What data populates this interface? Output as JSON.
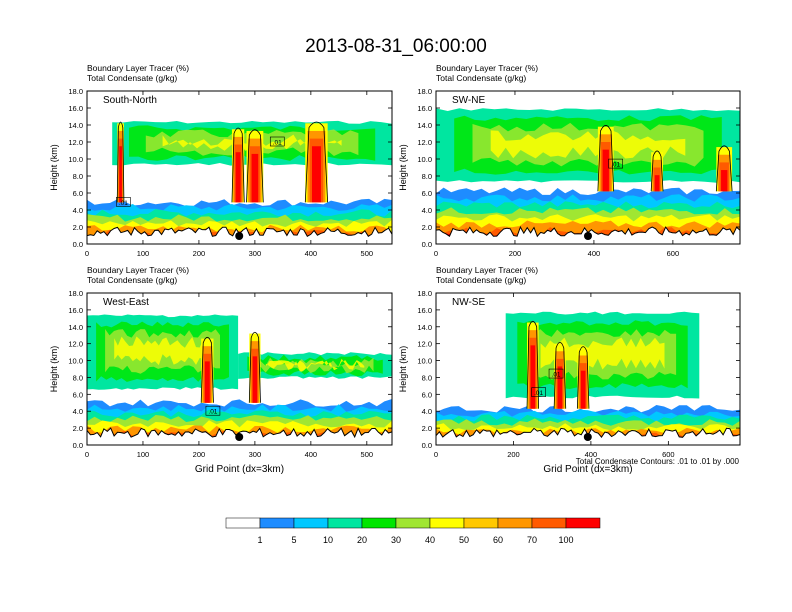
{
  "figure": {
    "title": "2013-08-31_06:00:00",
    "contour_note": "Total Condensate Contours: .01 to .01 by .000",
    "x_axis_title": "Grid Point (dx=3km)"
  },
  "colorbar": {
    "levels": [
      "1",
      "5",
      "10",
      "20",
      "30",
      "40",
      "50",
      "60",
      "70",
      "100"
    ],
    "colors": [
      "#ffffff",
      "#1e8cff",
      "#00c8ff",
      "#00e6a0",
      "#00e600",
      "#a0e632",
      "#ffff00",
      "#ffc800",
      "#ff9600",
      "#ff5a00",
      "#ff0000"
    ]
  },
  "chart_data": [
    {
      "type": "heatmap",
      "label": "South-North",
      "title_line1": "Boundary Layer Tracer   (%)",
      "title_line2": "Total Condensate   (g/kg)",
      "ylabel": "Height (km)",
      "xlabel": "",
      "xlim": [
        0,
        545
      ],
      "ylim": [
        0,
        18
      ],
      "xticks": [
        "0",
        "100",
        "200",
        "300",
        "400",
        "500"
      ],
      "yticks": [
        "0.0",
        "2.0",
        "4.0",
        "6.0",
        "8.0",
        "10.0",
        "12.0",
        "14.0",
        "16.0",
        "18.0"
      ],
      "contour_labels": [
        {
          "text": ".01",
          "x": 65,
          "y": 4.9
        },
        {
          "text": ".01",
          "x": 340,
          "y": 12.0
        }
      ],
      "site_marker_x": 272,
      "pbl_top_km": 4.9,
      "anvils": [
        {
          "x0": 45,
          "x1": 545,
          "y0": 9.2,
          "y1": 14.5
        }
      ],
      "towers": [
        {
          "x": 60,
          "w": 12,
          "top": 14.2
        },
        {
          "x": 270,
          "w": 22,
          "top": 13.5
        },
        {
          "x": 300,
          "w": 30,
          "top": 13.3
        },
        {
          "x": 410,
          "w": 40,
          "top": 14.2
        }
      ]
    },
    {
      "type": "heatmap",
      "label": "SW-NE",
      "title_line1": "Boundary Layer Tracer   (%)",
      "title_line2": "Total Condensate   (g/kg)",
      "ylabel": "Height (km)",
      "xlabel": "",
      "xlim": [
        0,
        770
      ],
      "ylim": [
        0,
        18
      ],
      "xticks": [
        "0",
        "200",
        "400",
        "600"
      ],
      "yticks": [
        "0.0",
        "2.0",
        "4.0",
        "6.0",
        "8.0",
        "10.0",
        "12.0",
        "14.0",
        "16.0",
        "18.0"
      ],
      "contour_labels": [
        {
          "text": ".01",
          "x": 455,
          "y": 9.4
        }
      ],
      "site_marker_x": 385,
      "pbl_top_km": 6.2,
      "anvils": [
        {
          "x0": 0,
          "x1": 770,
          "y0": 7.2,
          "y1": 16.0
        }
      ],
      "towers": [
        {
          "x": 430,
          "w": 40,
          "top": 13.8
        },
        {
          "x": 560,
          "w": 30,
          "top": 10.8
        },
        {
          "x": 730,
          "w": 40,
          "top": 11.4
        }
      ]
    },
    {
      "type": "heatmap",
      "label": "West-East",
      "title_line1": "Boundary Layer Tracer   (%)",
      "title_line2": "Total Condensate   (g/kg)",
      "ylabel": "Height (km)",
      "xlabel": "Grid Point (dx=3km)",
      "xlim": [
        0,
        545
      ],
      "ylim": [
        0,
        18
      ],
      "xticks": [
        "0",
        "100",
        "200",
        "300",
        "400",
        "500"
      ],
      "yticks": [
        "0.0",
        "2.0",
        "4.0",
        "6.0",
        "8.0",
        "10.0",
        "12.0",
        "14.0",
        "16.0",
        "18.0"
      ],
      "contour_labels": [
        {
          "text": ".01",
          "x": 225,
          "y": 4.0
        }
      ],
      "site_marker_x": 272,
      "pbl_top_km": 5.0,
      "anvils": [
        {
          "x0": 0,
          "x1": 270,
          "y0": 6.5,
          "y1": 15.5
        },
        {
          "x0": 270,
          "x1": 545,
          "y0": 7.8,
          "y1": 11.0
        }
      ],
      "towers": [
        {
          "x": 215,
          "w": 22,
          "top": 12.6
        },
        {
          "x": 300,
          "w": 20,
          "top": 13.2
        }
      ]
    },
    {
      "type": "heatmap",
      "label": "NW-SE",
      "title_line1": "Boundary Layer Tracer   (%)",
      "title_line2": "Total Condensate   (g/kg)",
      "ylabel": "Height (km)",
      "xlabel": "Grid Point (dx=3km)",
      "xlim": [
        0,
        785
      ],
      "ylim": [
        0,
        18
      ],
      "xticks": [
        "0",
        "200",
        "400",
        "600"
      ],
      "yticks": [
        "0.0",
        "2.0",
        "4.0",
        "6.0",
        "8.0",
        "10.0",
        "12.0",
        "14.0",
        "16.0",
        "18.0"
      ],
      "contour_labels": [
        {
          "text": ".01",
          "x": 265,
          "y": 6.2
        },
        {
          "text": ".01",
          "x": 310,
          "y": 8.4
        }
      ],
      "site_marker_x": 392,
      "pbl_top_km": 4.3,
      "anvils": [
        {
          "x0": 180,
          "x1": 680,
          "y0": 5.5,
          "y1": 15.8
        }
      ],
      "towers": [
        {
          "x": 250,
          "w": 30,
          "top": 14.5
        },
        {
          "x": 320,
          "w": 30,
          "top": 12.0
        },
        {
          "x": 380,
          "w": 30,
          "top": 11.5
        }
      ]
    }
  ]
}
